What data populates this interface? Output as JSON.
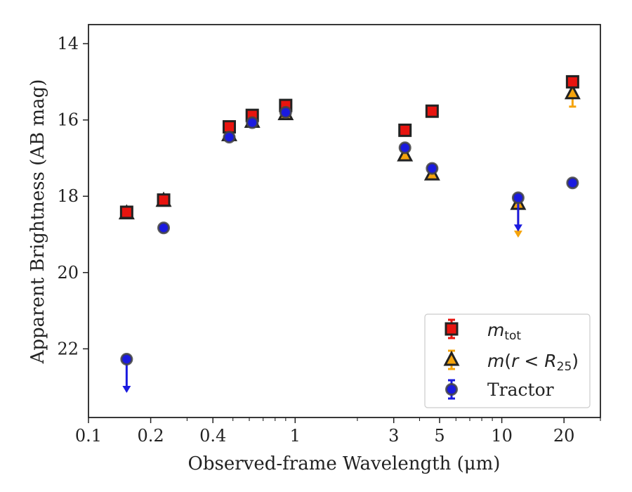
{
  "chart_data": {
    "type": "scatter",
    "xlabel": "Observed-frame Wavelength (μm)",
    "ylabel": "Apparent Brightness (AB mag)",
    "xscale": "log",
    "xlim": [
      0.1,
      30
    ],
    "ylim": [
      23.8,
      13.5
    ],
    "y_inverted": true,
    "grid": false,
    "legend_position": "lower-right",
    "x_ticks": [
      {
        "value": 0.1,
        "label": "0.1"
      },
      {
        "value": 0.2,
        "label": "0.2"
      },
      {
        "value": 0.4,
        "label": "0.4"
      },
      {
        "value": 1,
        "label": "1"
      },
      {
        "value": 3,
        "label": "3"
      },
      {
        "value": 5,
        "label": "5"
      },
      {
        "value": 10,
        "label": "10"
      },
      {
        "value": 20,
        "label": "20"
      }
    ],
    "y_ticks": [
      {
        "value": 14,
        "label": "14"
      },
      {
        "value": 16,
        "label": "16"
      },
      {
        "value": 18,
        "label": "18"
      },
      {
        "value": 20,
        "label": "20"
      },
      {
        "value": 22,
        "label": "22"
      }
    ],
    "series": [
      {
        "name": "m_tot",
        "marker": "square",
        "color": "#e8140f",
        "edge": "#222222",
        "points": [
          {
            "x": 0.153,
            "y": 18.42
          },
          {
            "x": 0.231,
            "y": 18.1
          },
          {
            "x": 0.48,
            "y": 16.18
          },
          {
            "x": 0.62,
            "y": 15.88
          },
          {
            "x": 0.9,
            "y": 15.62
          },
          {
            "x": 3.4,
            "y": 16.27
          },
          {
            "x": 4.6,
            "y": 15.77
          },
          {
            "x": 22,
            "y": 15.0
          }
        ]
      },
      {
        "name": "m(r<R25)",
        "marker": "triangle",
        "color": "#f5a40c",
        "edge": "#222222",
        "points": [
          {
            "x": 0.153,
            "y": 18.45
          },
          {
            "x": 0.231,
            "y": 18.12
          },
          {
            "x": 0.48,
            "y": 16.4
          },
          {
            "x": 0.62,
            "y": 16.05
          },
          {
            "x": 0.9,
            "y": 15.85
          },
          {
            "x": 3.4,
            "y": 16.93
          },
          {
            "x": 4.6,
            "y": 17.43
          },
          {
            "x": 12,
            "y": 18.2,
            "upper_limit": true
          },
          {
            "x": 22,
            "y": 15.3,
            "err": 0.35
          }
        ]
      },
      {
        "name": "Tractor",
        "marker": "circle",
        "color": "#1a1adf",
        "edge": "#444444",
        "points": [
          {
            "x": 0.153,
            "y": 22.27,
            "upper_limit": true
          },
          {
            "x": 0.231,
            "y": 18.83
          },
          {
            "x": 0.48,
            "y": 16.45
          },
          {
            "x": 0.62,
            "y": 16.07
          },
          {
            "x": 0.9,
            "y": 15.8
          },
          {
            "x": 3.4,
            "y": 16.73
          },
          {
            "x": 4.6,
            "y": 17.27
          },
          {
            "x": 12,
            "y": 18.04,
            "upper_limit": true
          },
          {
            "x": 22,
            "y": 17.65
          }
        ]
      }
    ]
  },
  "legend": {
    "m_tot_label": "m",
    "m_tot_sub": "tot",
    "r25_label_a": "m",
    "r25_label_b": "(",
    "r25_label_c": "r",
    "r25_label_d": " < ",
    "r25_label_e": "R",
    "r25_label_sub": "25",
    "r25_label_f": ")",
    "tractor_label": "Tractor"
  }
}
